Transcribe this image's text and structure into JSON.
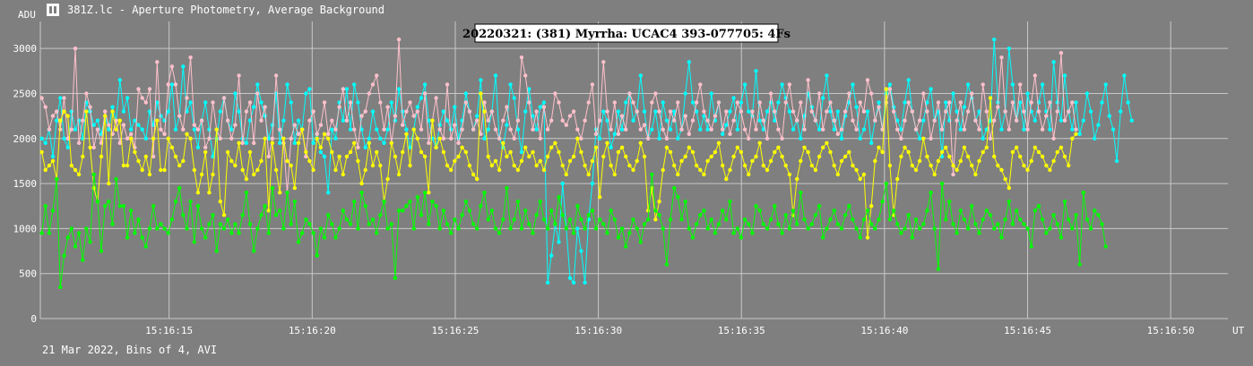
{
  "window": {
    "title": "381Z.lc - Aperture Photometry, Average Background",
    "icon": "chart-icon"
  },
  "footer": {
    "caption": "21 Mar 2022, Bins of 4, AVI"
  },
  "colors": {
    "background": "#7f7f7f",
    "grid": "#c8c8c8",
    "cyan": "#00ffff",
    "pink": "#ffc0cb",
    "yellow": "#ffff00",
    "green": "#00ff00"
  },
  "chart_data": {
    "type": "line",
    "title": "20220321: (381) Myrrha: UCAC4 393-077705: 4Fs",
    "ylabel": "ADU",
    "xlabel": "UT",
    "ylim": [
      0,
      3300
    ],
    "xlim": [
      15.5,
      57.0
    ],
    "yticks": [
      0,
      500,
      1000,
      1500,
      2000,
      2500,
      3000
    ],
    "xticks": [
      {
        "v": 20,
        "label": "15:16:15"
      },
      {
        "v": 25,
        "label": "15:16:20"
      },
      {
        "v": 30,
        "label": "15:16:25"
      },
      {
        "v": 35,
        "label": "15:16:30"
      },
      {
        "v": 40,
        "label": "15:16:35"
      },
      {
        "v": 45,
        "label": "15:16:40"
      },
      {
        "v": 50,
        "label": "15:16:45"
      },
      {
        "v": 55,
        "label": "15:16:50"
      }
    ],
    "grid": true,
    "x_start": 15.55,
    "x_step": 0.13,
    "series": [
      {
        "color": "#00ffff",
        "values": [
          2000,
          1950,
          2100,
          1800,
          2200,
          2450,
          2000,
          1900,
          2300,
          2100,
          2200,
          2000,
          2400,
          2300,
          2150,
          2200,
          2050,
          2250,
          2100,
          2350,
          2200,
          2650,
          2300,
          2450,
          2100,
          2200,
          2150,
          2100,
          2000,
          2300,
          2150,
          2400,
          2250,
          2200,
          2300,
          2600,
          2100,
          2250,
          2800,
          2300,
          2400,
          2100,
          1900,
          2200,
          2400,
          2100,
          1800,
          2000,
          2300,
          2450,
          2200,
          2100,
          2500,
          2300,
          2000,
          1950,
          2200,
          2350,
          2600,
          2400,
          2250,
          2000,
          2150,
          2500,
          1950,
          2200,
          2600,
          2400,
          1950,
          2200,
          2100,
          2500,
          2550,
          1950,
          2050,
          1850,
          1800,
          1400,
          2100,
          2000,
          2400,
          2200,
          2550,
          2100,
          2600,
          2400,
          2100,
          1900,
          2000,
          2300,
          2100,
          2000,
          1950,
          2100,
          2400,
          2200,
          2550,
          2300,
          2100,
          1900,
          2100,
          2350,
          2450,
          2600,
          2200,
          2000,
          1900,
          2150,
          2300,
          2200,
          2100,
          2350,
          2000,
          2200,
          2500,
          2300,
          2100,
          2250,
          2650,
          2000,
          2100,
          2300,
          2700,
          2000,
          1900,
          2150,
          2600,
          2450,
          2100,
          1850,
          2300,
          2550,
          2250,
          2100,
          2350,
          2400,
          400,
          700,
          1050,
          850,
          1500,
          1000,
          450,
          400,
          1000,
          750,
          400,
          1100,
          1500,
          2100,
          2000,
          2300,
          2200,
          1900,
          2050,
          2300,
          2100,
          2400,
          2500,
          2200,
          2300,
          2700,
          2300,
          2000,
          2100,
          2300,
          2000,
          2400,
          2200,
          2100,
          2300,
          2000,
          2100,
          2500,
          2850,
          2400,
          2300,
          2100,
          2250,
          2100,
          2500,
          2200,
          2400,
          2050,
          2150,
          2300,
          2450,
          2100,
          2400,
          2600,
          2300,
          2250,
          2750,
          2200,
          2100,
          2300,
          2400,
          2200,
          2400,
          2600,
          2450,
          2300,
          2100,
          2200,
          2000,
          2250,
          2500,
          2350,
          2200,
          2100,
          2450,
          2700,
          2300,
          2100,
          2300,
          2000,
          2250,
          2400,
          2600,
          2350,
          2000,
          2100,
          2300,
          1950,
          2200,
          2400,
          2100,
          2500,
          2600,
          2350,
          2200,
          2100,
          2400,
          2650,
          2300,
          2100,
          2000,
          2200,
          2400,
          2550,
          2200,
          2300,
          1800,
          2400,
          2200,
          2500,
          2300,
          2100,
          2350,
          2600,
          2450,
          2200,
          2300,
          2000,
          2100,
          2200,
          3100,
          2400,
          2100,
          2300,
          3000,
          2600,
          2200,
          2400,
          2100,
          2500,
          2300,
          2200,
          2400,
          2600,
          2300,
          2100,
          2850,
          2400,
          2200,
          2700,
          2300,
          2100,
          2400,
          2050,
          2200,
          2500,
          2300,
          2000,
          2150,
          2400,
          2600,
          2250,
          2100,
          1750,
          2300,
          2700,
          2400,
          2200
        ]
      },
      {
        "color": "#ffc0cb",
        "values": [
          2450,
          2350,
          2100,
          2250,
          2300,
          2100,
          2450,
          2000,
          2100,
          3000,
          1950,
          2200,
          2500,
          2350,
          1900,
          2100,
          1950,
          2300,
          2150,
          2050,
          2200,
          1950,
          2150,
          2000,
          2050,
          1900,
          2550,
          2450,
          2400,
          2550,
          1800,
          2850,
          2100,
          2050,
          2600,
          2800,
          2600,
          2250,
          2100,
          2450,
          2900,
          2150,
          2100,
          2200,
          1900,
          2000,
          2400,
          2100,
          2000,
          2450,
          2200,
          2000,
          2150,
          2700,
          1950,
          2300,
          2400,
          1950,
          2500,
          2200,
          2350,
          1800,
          2000,
          2700,
          2100,
          1950,
          1400,
          2000,
          2150,
          2050,
          2100,
          1800,
          2200,
          2300,
          2050,
          2150,
          2400,
          2050,
          2200,
          2100,
          2350,
          2550,
          2200,
          2400,
          2100,
          1900,
          2250,
          2300,
          2500,
          2600,
          2700,
          2400,
          2100,
          2350,
          1950,
          2250,
          3100,
          2150,
          2300,
          2400,
          2250,
          2300,
          2100,
          2500,
          1950,
          2200,
          2450,
          2100,
          2000,
          2600,
          2000,
          2150,
          1950,
          2100,
          2400,
          2300,
          2100,
          2200,
          2050,
          2400,
          2200,
          2300,
          2100,
          2000,
          2200,
          2350,
          2100,
          2000,
          2200,
          2900,
          2700,
          2400,
          2100,
          2300,
          2000,
          2350,
          2100,
          2200,
          2500,
          2400,
          2200,
          2150,
          2250,
          2300,
          2100,
          2000,
          2200,
          2400,
          2600,
          2050,
          2200,
          2850,
          2300,
          2100,
          2400,
          2050,
          2250,
          2100,
          2500,
          2400,
          2300,
          2100,
          2150,
          2000,
          2400,
          2500,
          2300,
          2100,
          2000,
          2300,
          2200,
          2400,
          2100,
          2250,
          2050,
          2200,
          2400,
          2600,
          2300,
          2200,
          2100,
          2250,
          2400,
          2100,
          2300,
          2050,
          2200,
          2400,
          2300,
          2100,
          2000,
          2300,
          2100,
          2400,
          2200,
          2000,
          2500,
          2300,
          2100,
          2000,
          2400,
          2600,
          2300,
          2200,
          2400,
          2100,
          2650,
          2300,
          2200,
          2500,
          2100,
          2300,
          2400,
          2200,
          2050,
          2100,
          2300,
          2500,
          2200,
          2100,
          2400,
          2300,
          2650,
          2500,
          2200,
          2350,
          2100,
          2400,
          2550,
          2300,
          2100,
          2000,
          2200,
          2400,
          2300,
          2100,
          2200,
          2500,
          2300,
          2000,
          2200,
          2400,
          2100,
          2300,
          2400,
          1600,
          2200,
          2400,
          2100,
          2300,
          2500,
          2200,
          2100,
          2600,
          2300,
          2000,
          2200,
          2350,
          2900,
          2300,
          2100,
          2400,
          2200,
          2600,
          2300,
          2100,
          2400,
          2700,
          2300,
          2100,
          2250,
          2400,
          2000,
          2300,
          2950,
          2200,
          2300,
          2400,
          2100
        ]
      },
      {
        "color": "#ffff00",
        "values": [
          1850,
          1650,
          1700,
          1750,
          1550,
          2200,
          2300,
          2250,
          1700,
          1650,
          1600,
          1800,
          2300,
          1900,
          1450,
          1300,
          1800,
          2250,
          1500,
          2300,
          2100,
          2200,
          1700,
          1700,
          2000,
          1850,
          1750,
          1650,
          1800,
          1600,
          2000,
          2200,
          1650,
          1650,
          2000,
          1900,
          1800,
          1700,
          1750,
          2050,
          2000,
          1650,
          1400,
          1600,
          1850,
          1400,
          1600,
          2100,
          1300,
          1150,
          1850,
          1750,
          1700,
          1950,
          1650,
          1550,
          1850,
          1600,
          1650,
          1750,
          2000,
          1200,
          1950,
          1650,
          1400,
          2000,
          1750,
          1700,
          1450,
          1950,
          2100,
          1850,
          1750,
          1650,
          2000,
          1900,
          2050,
          2000,
          1850,
          1650,
          1800,
          1600,
          1800,
          1850,
          1950,
          1750,
          1500,
          1650,
          1950,
          1700,
          1850,
          1700,
          1300,
          1550,
          1950,
          1800,
          1600,
          1850,
          2050,
          1700,
          2100,
          2000,
          1850,
          1800,
          1400,
          2200,
          1900,
          2000,
          1850,
          1700,
          1650,
          1750,
          1800,
          1900,
          1850,
          1700,
          1600,
          1550,
          2500,
          2300,
          1800,
          1700,
          1750,
          1650,
          1950,
          1800,
          1850,
          1700,
          1650,
          1750,
          1900,
          1800,
          1850,
          1700,
          1750,
          1650,
          1800,
          1900,
          1950,
          1850,
          1700,
          1600,
          1750,
          1800,
          2000,
          1850,
          1700,
          1600,
          1750,
          1900,
          1350,
          1800,
          1950,
          1700,
          1600,
          1850,
          1900,
          1800,
          1700,
          1650,
          1750,
          1950,
          1800,
          1200,
          1450,
          1100,
          1300,
          1650,
          1900,
          1850,
          1700,
          1600,
          1750,
          1800,
          1900,
          1850,
          1700,
          1650,
          1600,
          1750,
          1800,
          1850,
          1950,
          1700,
          1550,
          1650,
          1800,
          1900,
          1850,
          1700,
          1600,
          1750,
          1800,
          1950,
          1700,
          1650,
          1750,
          1850,
          1900,
          1800,
          1700,
          1600,
          1150,
          1550,
          1750,
          1900,
          1850,
          1700,
          1650,
          1800,
          1900,
          1950,
          1850,
          1700,
          1600,
          1750,
          1800,
          1850,
          1700,
          1650,
          1550,
          1600,
          900,
          1250,
          1750,
          1900,
          1850,
          2550,
          1700,
          1150,
          1550,
          1800,
          1900,
          1850,
          1700,
          1650,
          1750,
          2000,
          1800,
          1700,
          1600,
          1750,
          1850,
          1900,
          1800,
          1700,
          1650,
          1750,
          1900,
          1800,
          1700,
          1600,
          1750,
          1850,
          1900,
          2450,
          1800,
          1700,
          1650,
          1550,
          1450,
          1850,
          1900,
          1800,
          1700,
          1650,
          1750,
          1900,
          1850,
          1800,
          1700,
          1650,
          1750,
          1850,
          1900,
          1800,
          1700,
          2000,
          2050
        ]
      },
      {
        "color": "#00ff00",
        "values": [
          950,
          1250,
          950,
          1200,
          1550,
          350,
          700,
          900,
          1000,
          800,
          950,
          650,
          1000,
          850,
          1600,
          1300,
          750,
          1250,
          1300,
          1050,
          1550,
          1250,
          1250,
          900,
          1200,
          950,
          1100,
          900,
          800,
          1000,
          1250,
          1000,
          1050,
          1000,
          950,
          1100,
          1300,
          1450,
          1150,
          1000,
          1300,
          850,
          1250,
          1000,
          900,
          1050,
          1150,
          750,
          1050,
          1000,
          1100,
          950,
          1050,
          950,
          1150,
          1400,
          1050,
          750,
          1000,
          1150,
          1250,
          950,
          1450,
          1150,
          1200,
          1000,
          1400,
          1050,
          1300,
          850,
          950,
          1100,
          1050,
          950,
          700,
          1000,
          900,
          1150,
          1050,
          900,
          1000,
          1200,
          1100,
          1050,
          1300,
          1000,
          1400,
          1250,
          1050,
          1100,
          950,
          1150,
          1300,
          1000,
          1050,
          450,
          1200,
          1200,
          1250,
          1300,
          1000,
          1350,
          1150,
          1400,
          1050,
          1300,
          1250,
          1000,
          1200,
          1050,
          950,
          1100,
          1000,
          1150,
          1300,
          1200,
          1050,
          1000,
          1250,
          1400,
          1100,
          1200,
          1000,
          950,
          1100,
          1450,
          1000,
          1100,
          1300,
          1000,
          1200,
          1050,
          950,
          1150,
          1300,
          1100,
          1000,
          1200,
          1050,
          1350,
          1150,
          1000,
          1100,
          950,
          1250,
          1100,
          1000,
          1150,
          1200,
          1000,
          1100,
          1050,
          950,
          1200,
          1100,
          900,
          1000,
          800,
          950,
          1100,
          1000,
          850,
          1050,
          1100,
          1600,
          1200,
          1150,
          1000,
          600,
          1100,
          1450,
          1350,
          1100,
          1300,
          1000,
          900,
          1050,
          1150,
          1200,
          1000,
          1100,
          950,
          1050,
          1200,
          1100,
          1300,
          950,
          1000,
          900,
          1100,
          1050,
          950,
          1250,
          1200,
          1050,
          1000,
          1100,
          1250,
          1050,
          950,
          1150,
          1000,
          1200,
          1050,
          1400,
          1100,
          1000,
          1050,
          1150,
          1250,
          900,
          1000,
          1100,
          1200,
          1050,
          1000,
          1150,
          1250,
          1100,
          1000,
          900,
          1100,
          1200,
          1050,
          1000,
          1100,
          1300,
          1500,
          1100,
          1200,
          1050,
          950,
          1000,
          1150,
          900,
          1100,
          1000,
          1050,
          1200,
          1400,
          1000,
          550,
          1500,
          1100,
          1300,
          1050,
          950,
          1200,
          1100,
          1000,
          1250,
          1050,
          950,
          1100,
          1200,
          1150,
          1000,
          1050,
          900,
          1100,
          1300,
          1050,
          1200,
          1100,
          1050,
          1000,
          800,
          1200,
          1250,
          1100,
          950,
          1000,
          1150,
          1050,
          900,
          1300,
          1100,
          1000,
          1150,
          600,
          1400,
          1100,
          1000,
          1200,
          1150,
          1050,
          800
        ]
      }
    ]
  }
}
